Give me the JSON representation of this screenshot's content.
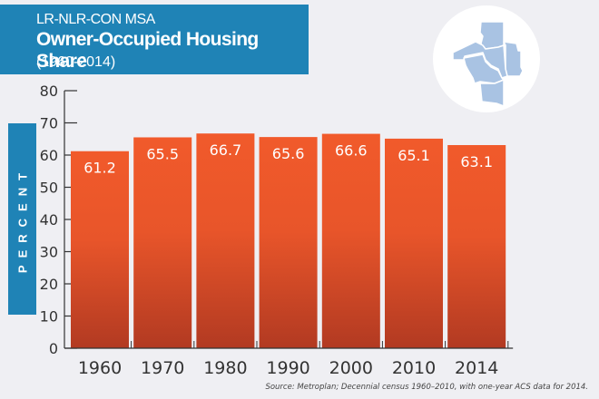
{
  "header": {
    "line1": "LR-NLR-CON MSA",
    "line2": "Owner-Occupied Housing Share",
    "line3": "(1960-2014)"
  },
  "map_icon": "county-map-icon",
  "colors": {
    "title_bg": "#1f83b6",
    "bar_top": "#f15a2b",
    "bar_bottom": "#b23a22",
    "map_fill": "#a9c3e3",
    "background": "#efeff3"
  },
  "chart_data": {
    "type": "bar",
    "title": "Owner-Occupied Housing Share",
    "subtitle": "LR-NLR-CON MSA (1960-2014)",
    "xlabel": "",
    "ylabel": "PERCENT",
    "categories": [
      "1960",
      "1970",
      "1980",
      "1990",
      "2000",
      "2010",
      "2014"
    ],
    "values": [
      61.2,
      65.5,
      66.7,
      65.6,
      66.6,
      65.1,
      63.1
    ],
    "value_labels": [
      "61.2",
      "65.5",
      "66.7",
      "65.6",
      "66.6",
      "65.1",
      "63.1"
    ],
    "ylim": [
      0,
      80
    ],
    "yticks": [
      "0",
      "10",
      "20",
      "30",
      "40",
      "50",
      "60",
      "70",
      "80"
    ],
    "grid": false,
    "legend": "none"
  },
  "source": "Source: Metroplan; Decennial census 1960–2010, with one-year ACS data for 2014."
}
